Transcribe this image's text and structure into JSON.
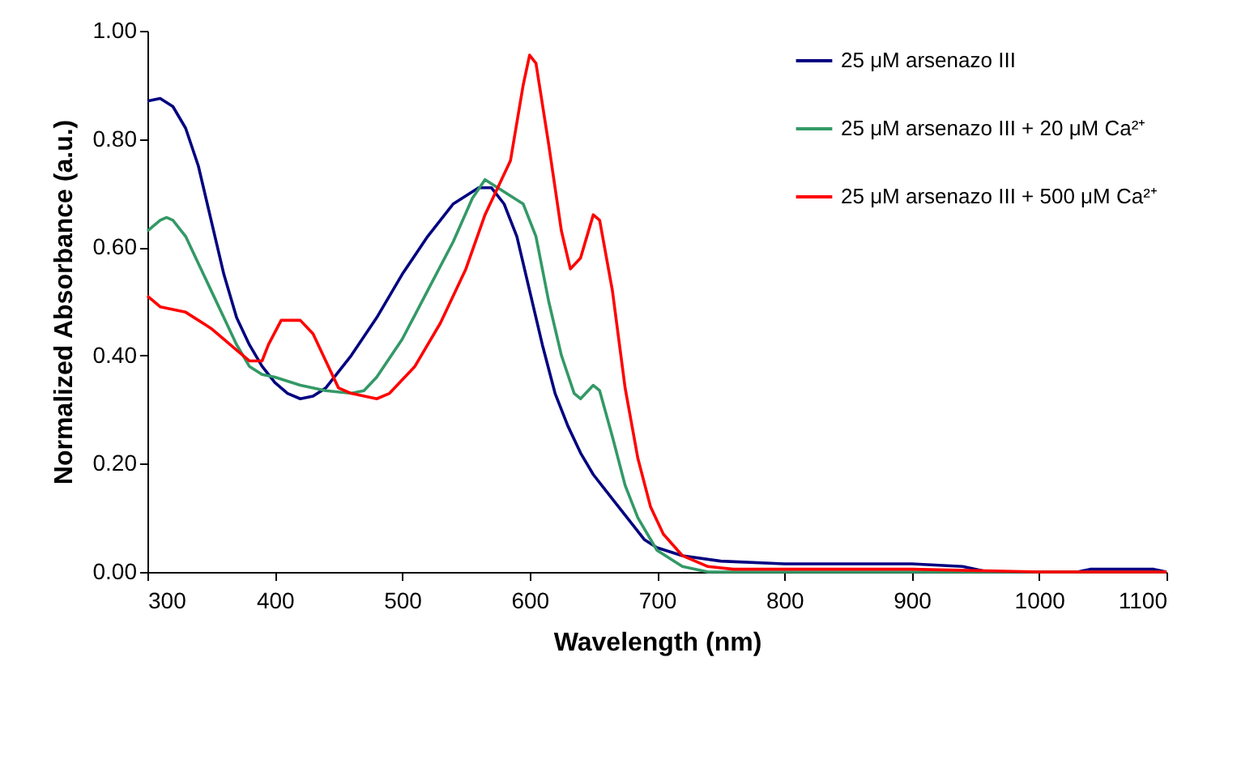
{
  "chart_data": {
    "type": "line",
    "xlabel": "Wavelength (nm)",
    "ylabel": "Normalized Absorbance (a.u.)",
    "xlim": [
      300,
      1100
    ],
    "xticks": [
      300,
      400,
      500,
      600,
      700,
      800,
      900,
      1000,
      1100
    ],
    "ylim": [
      0,
      1
    ],
    "yticks": [
      {
        "value": 0,
        "label": "0.00"
      },
      {
        "value": 0.2,
        "label": "0.20"
      },
      {
        "value": 0.4,
        "label": "0.40"
      },
      {
        "value": 0.6,
        "label": "0.60"
      },
      {
        "value": 0.8,
        "label": "0.80"
      },
      {
        "value": 1,
        "label": "1.00"
      }
    ],
    "grid": false,
    "legend": "top right",
    "marker": "none",
    "line_style": "solid",
    "series": [
      {
        "name": "25 μM arsenazo III",
        "color": "#000080",
        "x": [
          300,
          310,
          320,
          330,
          340,
          350,
          360,
          370,
          380,
          390,
          400,
          410,
          420,
          430,
          440,
          460,
          480,
          500,
          520,
          540,
          560,
          570,
          580,
          590,
          600,
          610,
          620,
          630,
          640,
          650,
          660,
          670,
          680,
          690,
          700,
          720,
          750,
          800,
          900,
          940,
          960,
          1000,
          1030,
          1040,
          1090,
          1100
        ],
        "values": [
          0.87,
          0.875,
          0.86,
          0.82,
          0.75,
          0.65,
          0.55,
          0.47,
          0.42,
          0.38,
          0.35,
          0.33,
          0.32,
          0.325,
          0.34,
          0.4,
          0.47,
          0.55,
          0.62,
          0.68,
          0.71,
          0.71,
          0.68,
          0.62,
          0.52,
          0.42,
          0.33,
          0.27,
          0.22,
          0.18,
          0.15,
          0.12,
          0.09,
          0.06,
          0.045,
          0.03,
          0.02,
          0.015,
          0.015,
          0.01,
          0.0,
          0.0,
          0.0,
          0.005,
          0.005,
          0.0
        ]
      },
      {
        "name": "25 μM arsenazo III + 20 μM Ca²⁺",
        "color": "#339966",
        "x": [
          300,
          310,
          315,
          320,
          330,
          340,
          350,
          360,
          370,
          380,
          390,
          400,
          420,
          440,
          460,
          470,
          480,
          500,
          520,
          540,
          555,
          565,
          575,
          585,
          595,
          605,
          615,
          625,
          635,
          640,
          650,
          655,
          665,
          675,
          685,
          700,
          720,
          740,
          1100
        ],
        "values": [
          0.63,
          0.65,
          0.655,
          0.65,
          0.62,
          0.57,
          0.52,
          0.47,
          0.42,
          0.38,
          0.365,
          0.36,
          0.345,
          0.335,
          0.33,
          0.335,
          0.36,
          0.43,
          0.52,
          0.61,
          0.69,
          0.725,
          0.71,
          0.695,
          0.68,
          0.62,
          0.5,
          0.4,
          0.33,
          0.32,
          0.345,
          0.335,
          0.25,
          0.16,
          0.1,
          0.04,
          0.01,
          0.0,
          0.0
        ]
      },
      {
        "name": "25 μM arsenazo III + 500 μM Ca²⁺",
        "color": "#ff0000",
        "x": [
          300,
          310,
          330,
          350,
          370,
          380,
          390,
          395,
          405,
          420,
          430,
          440,
          450,
          460,
          480,
          490,
          510,
          530,
          550,
          565,
          575,
          585,
          595,
          600,
          605,
          615,
          625,
          632,
          640,
          650,
          655,
          665,
          675,
          685,
          695,
          705,
          720,
          740,
          760,
          800,
          900,
          1000,
          1100
        ],
        "values": [
          0.51,
          0.49,
          0.48,
          0.45,
          0.41,
          0.39,
          0.39,
          0.42,
          0.465,
          0.465,
          0.44,
          0.39,
          0.34,
          0.33,
          0.32,
          0.33,
          0.38,
          0.46,
          0.56,
          0.66,
          0.71,
          0.76,
          0.9,
          0.955,
          0.94,
          0.79,
          0.63,
          0.56,
          0.58,
          0.66,
          0.65,
          0.52,
          0.34,
          0.21,
          0.12,
          0.07,
          0.03,
          0.01,
          0.005,
          0.005,
          0.005,
          0.0,
          0.0
        ]
      }
    ]
  }
}
